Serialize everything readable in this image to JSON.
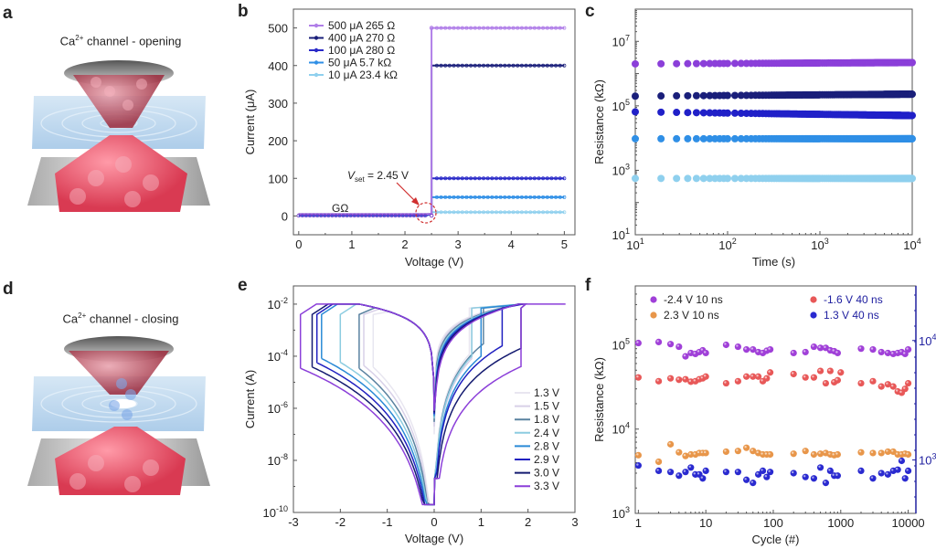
{
  "panels": {
    "a": {
      "letter": "a",
      "title_main": "Ca",
      "title_sup": "2+",
      "title_rest": " channel - opening"
    },
    "d": {
      "letter": "d",
      "title_main": "Ca",
      "title_sup": "2+",
      "title_rest": " channel - closing"
    },
    "b": {
      "letter": "b"
    },
    "c": {
      "letter": "c"
    },
    "e": {
      "letter": "e"
    },
    "f": {
      "letter": "f"
    }
  },
  "colors": {
    "purple": "#8b3fd9",
    "navy": "#1a1f7a",
    "blue": "#2222cc",
    "mid_blue": "#2f8fe6",
    "light_blue": "#8fd0ee",
    "red": "#e85858",
    "orange": "#e8964a",
    "right_axis": "#2020a0"
  },
  "chart_data": [
    {
      "id": "b",
      "type": "line",
      "xlabel": "Voltage (V)",
      "ylabel": "Current (μA)",
      "xlim": [
        -0.1,
        5.2
      ],
      "ylim": [
        -50,
        550
      ],
      "xticks": [
        0,
        1,
        2,
        3,
        4,
        5
      ],
      "yticks": [
        0,
        100,
        200,
        300,
        400,
        500
      ],
      "legend_position": "top-left",
      "vset_voltage": 2.45,
      "annotations": {
        "vset_prefix": "V",
        "vset_sub": "set",
        "vset_suffix": " = 2.45 V",
        "gohm": "GΩ"
      },
      "series": [
        {
          "name": "500 μA  265 Ω",
          "compliance": 500,
          "color": "#b07ee8"
        },
        {
          "name": "400 μA  270 Ω",
          "compliance": 400,
          "color": "#1a1f7a"
        },
        {
          "name": "100 μA  280 Ω",
          "compliance": 100,
          "color": "#2a2ac8"
        },
        {
          "name": "50 μA  5.7 kΩ",
          "compliance": 50,
          "color": "#2f8fe6"
        },
        {
          "name": "10 μA  23.4 kΩ",
          "compliance": 10,
          "color": "#8fd0ee"
        }
      ],
      "jump_x": 2.5
    },
    {
      "id": "c",
      "type": "scatter",
      "xlabel": "Time (s)",
      "ylabel": "Resistance (kΩ)",
      "xscale": "log",
      "yscale": "log",
      "xlim": [
        10,
        10000
      ],
      "ylim": [
        10,
        100000000
      ],
      "xticks": [
        {
          "v": 10,
          "b": "10",
          "e": "1"
        },
        {
          "v": 100,
          "b": "10",
          "e": "2"
        },
        {
          "v": 1000,
          "b": "10",
          "e": "3"
        },
        {
          "v": 10000,
          "b": "10",
          "e": "4"
        }
      ],
      "yticks": [
        {
          "v": 10,
          "b": "10",
          "e": "1"
        },
        {
          "v": 1000,
          "b": "10",
          "e": "3"
        },
        {
          "v": 100000,
          "b": "10",
          "e": "5"
        },
        {
          "v": 10000000,
          "b": "10",
          "e": "7"
        }
      ],
      "series": [
        {
          "name": "500 μA",
          "color": "#8b3fd9",
          "start": 2000000,
          "end": 2200000
        },
        {
          "name": "400 μA",
          "color": "#1a1f7a",
          "start": 200000,
          "end": 230000
        },
        {
          "name": "100 μA",
          "color": "#2020c8",
          "start": 65000,
          "end": 50000
        },
        {
          "name": "50 μA",
          "color": "#2f8fe6",
          "start": 9500,
          "end": 9500
        },
        {
          "name": "10 μA",
          "color": "#8fd0ee",
          "start": 560,
          "end": 560
        }
      ]
    },
    {
      "id": "e",
      "type": "line",
      "xlabel": "Voltage (V)",
      "ylabel": "Current (A)",
      "yscale": "log",
      "xlim": [
        -3,
        3
      ],
      "ylim": [
        1e-10,
        0.05
      ],
      "xticks": [
        -3,
        -2,
        -1,
        0,
        1,
        2,
        3
      ],
      "yticks": [
        {
          "v": 1e-10,
          "b": "10",
          "e": "-10"
        },
        {
          "v": 1e-08,
          "b": "10",
          "e": "-8"
        },
        {
          "v": 1e-06,
          "b": "10",
          "e": "-6"
        },
        {
          "v": 0.0001,
          "b": "10",
          "e": "-4"
        },
        {
          "v": 0.01,
          "b": "10",
          "e": "-2"
        }
      ],
      "legend_position": "bottom-right",
      "compliance": 0.01,
      "series": [
        {
          "name": "1.3 V",
          "color": "#e8e6f0",
          "vreset": -1.3,
          "vset": 0.75,
          "i_low_pos": 0.00012
        },
        {
          "name": "1.5 V",
          "color": "#d8d0e8",
          "vreset": -1.5,
          "vset": 0.8,
          "i_low_pos": 8e-05
        },
        {
          "name": "1.8 V",
          "color": "#5a82a0",
          "vreset": -1.6,
          "vset": 1.05,
          "i_low_pos": 0.0003
        },
        {
          "name": "2.4 V",
          "color": "#8ccce0",
          "vreset": -2.0,
          "vset": 0.8,
          "i_low_pos": 0.0001
        },
        {
          "name": "2.8 V",
          "color": "#2a8ad6",
          "vreset": -2.4,
          "vset": 1.0,
          "i_low_pos": 0.0001
        },
        {
          "name": "2.9 V",
          "color": "#2020c0",
          "vreset": -2.5,
          "vset": 1.45,
          "i_low_pos": 0.00025
        },
        {
          "name": "3.0 V",
          "color": "#141a70",
          "vreset": -2.6,
          "vset": 1.85,
          "i_low_pos": 0.0002
        },
        {
          "name": "3.3 V",
          "color": "#8b3fd9",
          "vreset": -2.85,
          "vset": 1.85,
          "i_low_pos": 4e-05
        }
      ]
    },
    {
      "id": "f",
      "type": "scatter",
      "xlabel": "Cycle (#)",
      "ylabel": "Resistance (kΩ)",
      "xscale": "log",
      "yscale": "log",
      "xlim": [
        0.9,
        13000
      ],
      "ylim": [
        1000,
        500000
      ],
      "xticks": [
        {
          "v": 1,
          "l": "1"
        },
        {
          "v": 10,
          "l": "10"
        },
        {
          "v": 100,
          "l": "100"
        },
        {
          "v": 1000,
          "l": "1000"
        },
        {
          "v": 10000,
          "l": "10000"
        }
      ],
      "yticks": [
        {
          "v": 1000,
          "b": "10",
          "e": "3"
        },
        {
          "v": 10000,
          "b": "10",
          "e": "4"
        },
        {
          "v": 100000,
          "b": "10",
          "e": "5"
        }
      ],
      "right_yticks": [
        {
          "pos": 0.235,
          "b": "10",
          "e": "3"
        },
        {
          "pos": 0.76,
          "b": "10",
          "e": "4"
        }
      ],
      "series": [
        {
          "name": "-2.4 V 10 ns",
          "color": "#a040d8",
          "axis": "left",
          "label_color": "#222",
          "points": [
            [
              1,
              105000
            ],
            [
              2,
              108000
            ],
            [
              3,
              102000
            ],
            [
              4,
              95000
            ],
            [
              5,
              73000
            ],
            [
              6,
              80000
            ],
            [
              7,
              78000
            ],
            [
              8,
              82000
            ],
            [
              9,
              86000
            ],
            [
              10,
              80000
            ],
            [
              20,
              100000
            ],
            [
              30,
              95000
            ],
            [
              40,
              88000
            ],
            [
              50,
              88000
            ],
            [
              60,
              82000
            ],
            [
              70,
              80000
            ],
            [
              80,
              85000
            ],
            [
              90,
              88000
            ],
            [
              200,
              80000
            ],
            [
              300,
              82000
            ],
            [
              400,
              95000
            ],
            [
              500,
              92000
            ],
            [
              600,
              92000
            ],
            [
              700,
              86000
            ],
            [
              800,
              84000
            ],
            [
              900,
              80000
            ],
            [
              2000,
              90000
            ],
            [
              3000,
              88000
            ],
            [
              4000,
              82000
            ],
            [
              5000,
              80000
            ],
            [
              6000,
              78000
            ],
            [
              7000,
              80000
            ],
            [
              8000,
              82000
            ],
            [
              9000,
              78000
            ],
            [
              10000,
              88000
            ]
          ]
        },
        {
          "name": "2.3 V 10 ns",
          "color": "#e8964a",
          "axis": "left",
          "label_color": "#222",
          "points": [
            [
              1,
              4900
            ],
            [
              2,
              4100
            ],
            [
              3,
              6600
            ],
            [
              4,
              5300
            ],
            [
              5,
              4800
            ],
            [
              6,
              5000
            ],
            [
              7,
              5000
            ],
            [
              8,
              5200
            ],
            [
              9,
              5200
            ],
            [
              10,
              5200
            ],
            [
              20,
              5400
            ],
            [
              30,
              5500
            ],
            [
              40,
              6000
            ],
            [
              50,
              5500
            ],
            [
              60,
              5200
            ],
            [
              70,
              5000
            ],
            [
              80,
              5000
            ],
            [
              90,
              5000
            ],
            [
              200,
              5100
            ],
            [
              300,
              5500
            ],
            [
              400,
              5000
            ],
            [
              500,
              5100
            ],
            [
              600,
              5200
            ],
            [
              700,
              5000
            ],
            [
              800,
              4900
            ],
            [
              900,
              5000
            ],
            [
              2000,
              5300
            ],
            [
              3000,
              5200
            ],
            [
              4000,
              5200
            ],
            [
              5000,
              5400
            ],
            [
              6000,
              5400
            ],
            [
              7000,
              5000
            ],
            [
              8000,
              5000
            ],
            [
              9000,
              5100
            ],
            [
              10000,
              5000
            ]
          ]
        },
        {
          "name": "-1.6 V 40 ns",
          "color": "#e85858",
          "axis": "right",
          "label_color": "#2020a0",
          "points": [
            [
              1,
              41000
            ],
            [
              2,
              37000
            ],
            [
              3,
              40000
            ],
            [
              4,
              38500
            ],
            [
              5,
              39000
            ],
            [
              6,
              36500
            ],
            [
              7,
              37000
            ],
            [
              8,
              39000
            ],
            [
              9,
              40000
            ],
            [
              10,
              42000
            ],
            [
              20,
              35000
            ],
            [
              30,
              37000
            ],
            [
              40,
              42000
            ],
            [
              50,
              42000
            ],
            [
              60,
              42000
            ],
            [
              70,
              37000
            ],
            [
              80,
              40000
            ],
            [
              90,
              47000
            ],
            [
              200,
              45000
            ],
            [
              300,
              41000
            ],
            [
              400,
              41000
            ],
            [
              500,
              49000
            ],
            [
              600,
              35000
            ],
            [
              700,
              49000
            ],
            [
              800,
              36000
            ],
            [
              900,
              38000
            ],
            [
              1000,
              47000
            ],
            [
              2000,
              35000
            ],
            [
              3000,
              37000
            ],
            [
              4000,
              32000
            ],
            [
              5000,
              34000
            ],
            [
              6000,
              32000
            ],
            [
              7000,
              28000
            ],
            [
              8000,
              27000
            ],
            [
              9000,
              30000
            ],
            [
              10000,
              35000
            ]
          ]
        },
        {
          "name": "1.3 V 40 ns",
          "color": "#2a2ad0",
          "axis": "right",
          "label_color": "#2020a0",
          "points": [
            [
              1,
              3700
            ],
            [
              2,
              3200
            ],
            [
              3,
              3100
            ],
            [
              4,
              2800
            ],
            [
              5,
              3100
            ],
            [
              6,
              3500
            ],
            [
              7,
              2900
            ],
            [
              8,
              2900
            ],
            [
              9,
              2600
            ],
            [
              10,
              3200
            ],
            [
              20,
              3100
            ],
            [
              30,
              3100
            ],
            [
              40,
              2500
            ],
            [
              50,
              2300
            ],
            [
              60,
              2900
            ],
            [
              70,
              3200
            ],
            [
              80,
              2700
            ],
            [
              90,
              3100
            ],
            [
              200,
              3000
            ],
            [
              300,
              2700
            ],
            [
              400,
              2600
            ],
            [
              500,
              3500
            ],
            [
              600,
              2300
            ],
            [
              700,
              3200
            ],
            [
              800,
              2800
            ],
            [
              900,
              2800
            ],
            [
              2000,
              3200
            ],
            [
              3000,
              2600
            ],
            [
              4000,
              3000
            ],
            [
              5000,
              2900
            ],
            [
              6000,
              3200
            ],
            [
              7000,
              3300
            ],
            [
              8000,
              4200
            ],
            [
              9000,
              2600
            ],
            [
              10000,
              3200
            ]
          ]
        }
      ]
    }
  ]
}
